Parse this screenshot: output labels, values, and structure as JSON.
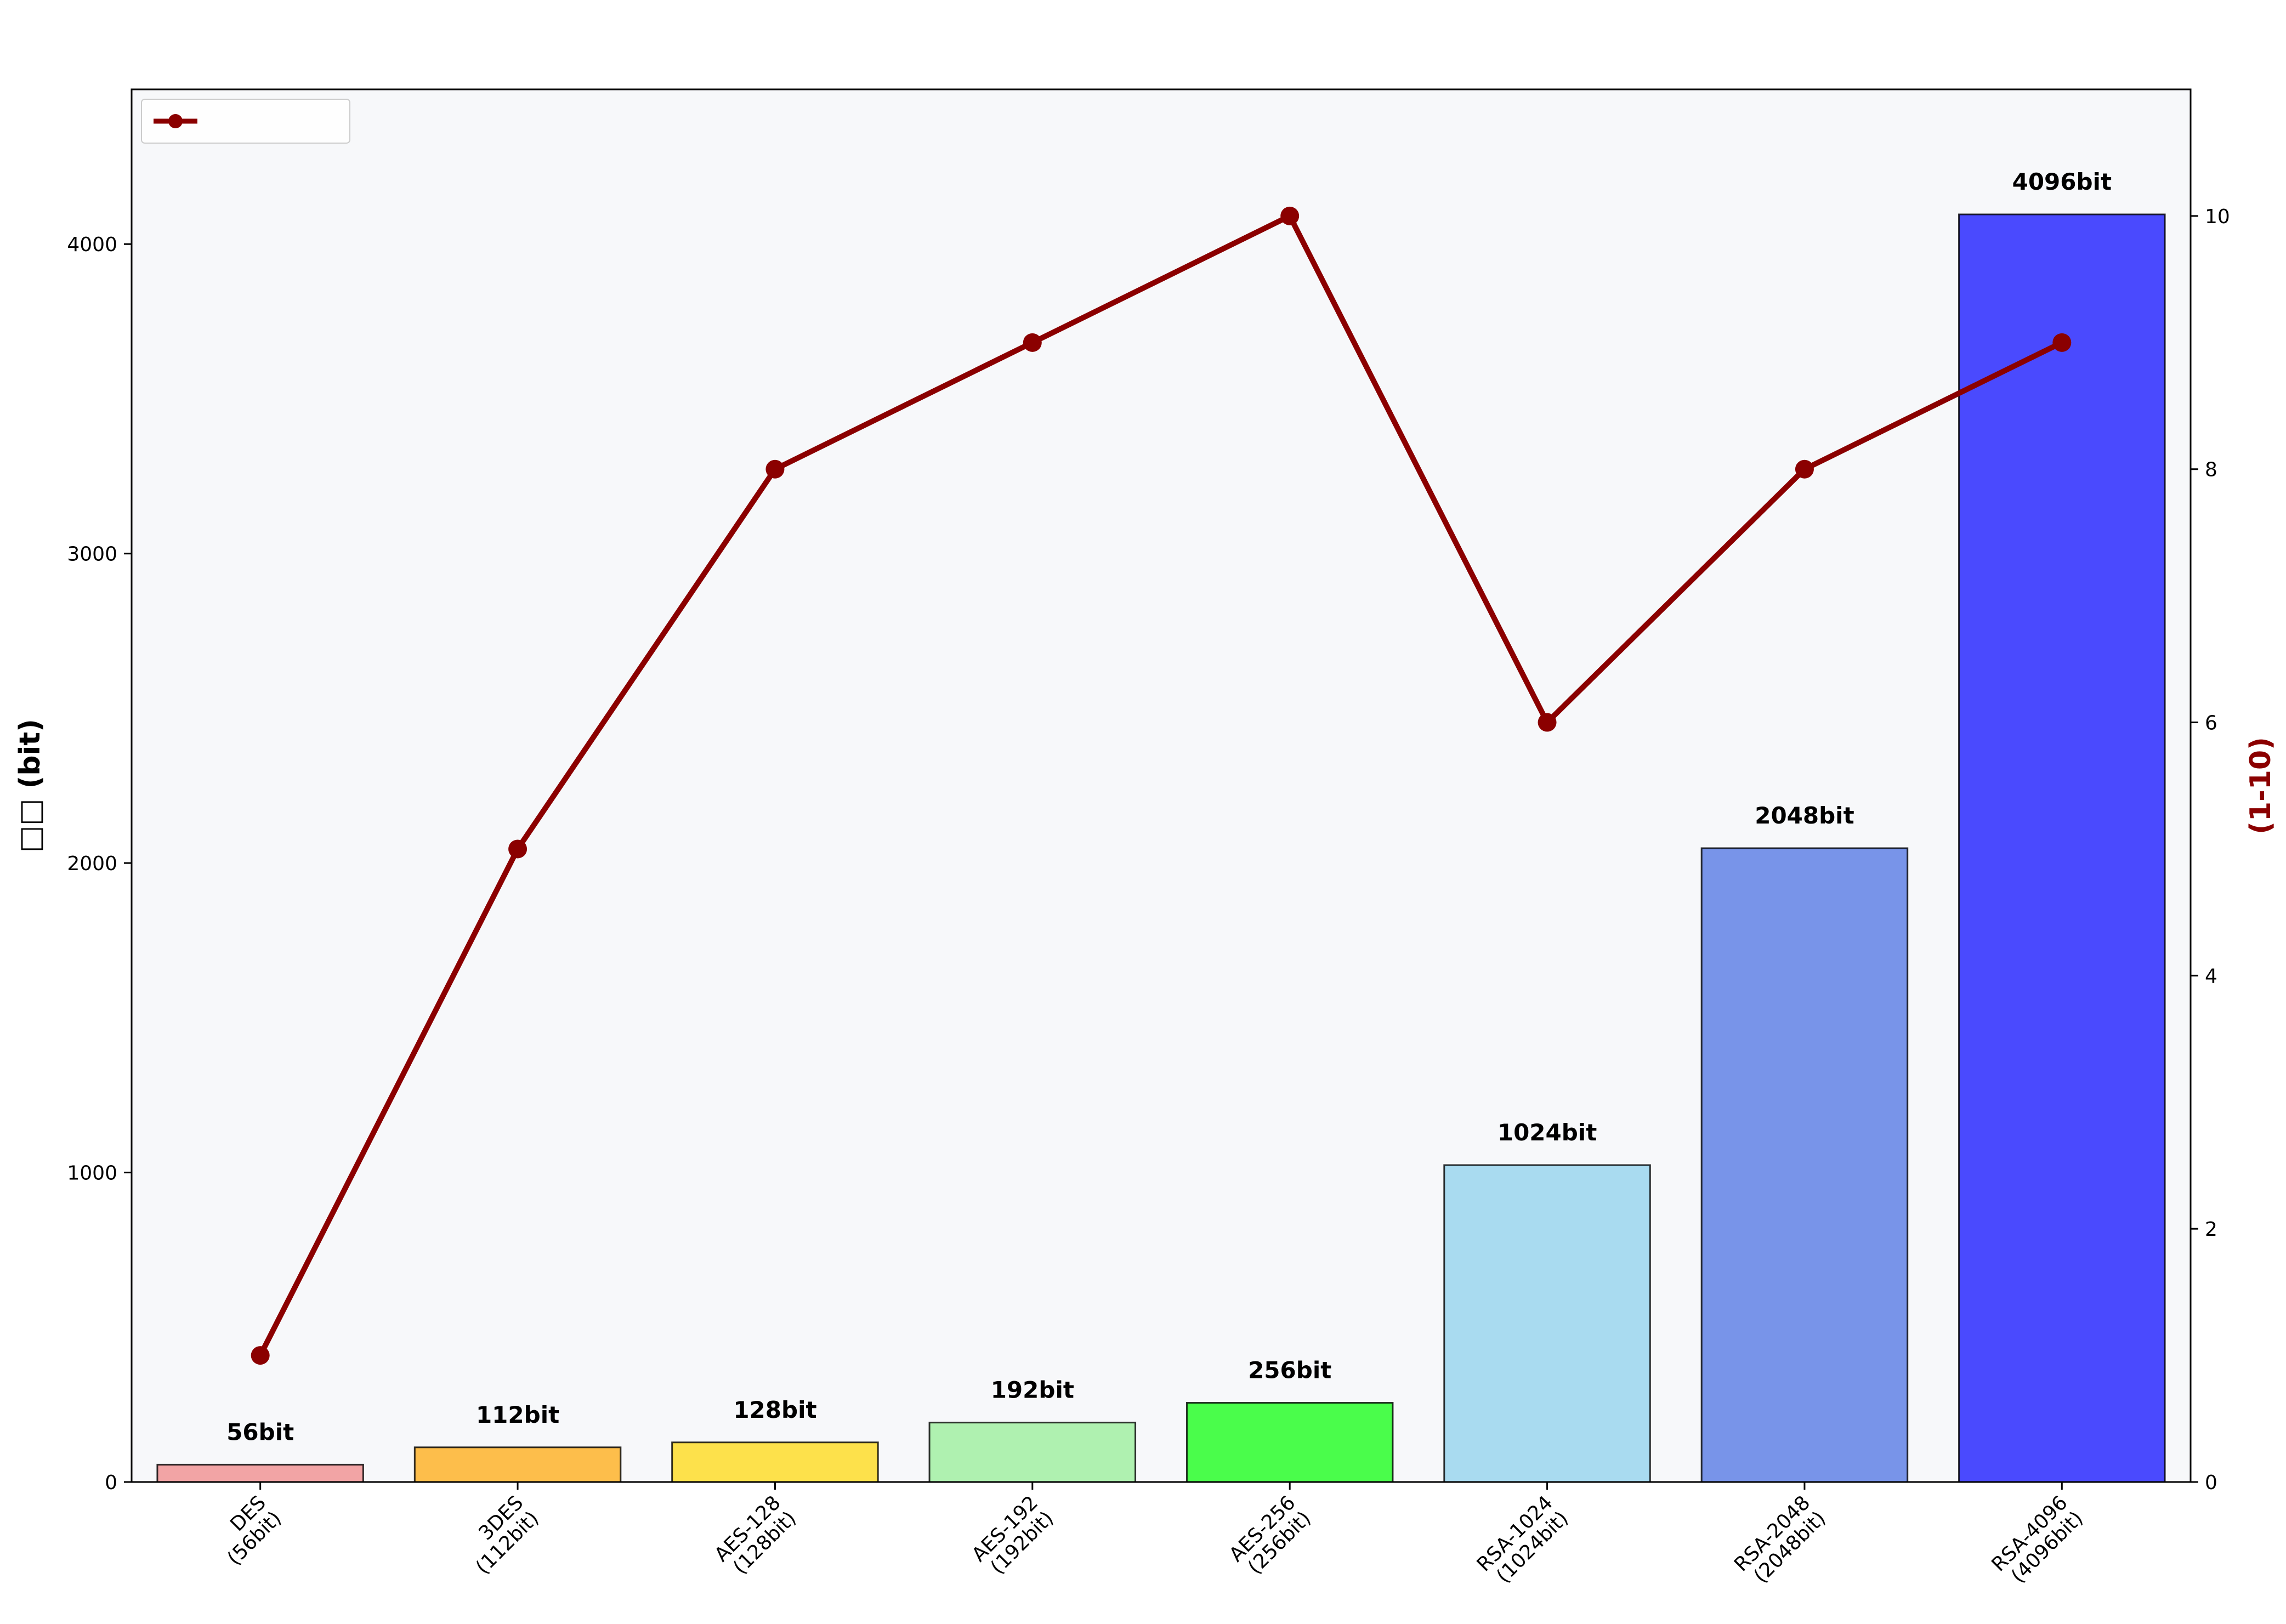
{
  "chart_data": {
    "type": "bar",
    "title": "",
    "categories": [
      "DES\n(56bit)",
      "3DES\n(112bit)",
      "AES-128\n(128bit)",
      "AES-192\n(192bit)",
      "AES-256\n(256bit)",
      "RSA-1024\n(1024bit)",
      "RSA-2048\n(2048bit)",
      "RSA-4096\n(4096bit)"
    ],
    "values": [
      56,
      112,
      128,
      192,
      256,
      1024,
      2048,
      4096
    ],
    "data_labels": [
      "56bit",
      "112bit",
      "128bit",
      "192bit",
      "256bit",
      "1024bit",
      "2048bit",
      "4096bit"
    ],
    "bar_colors": [
      "#F08080",
      "#FFA500",
      "#FFD700",
      "#90EE90",
      "#00FF00",
      "#87CEEB",
      "#4169E1",
      "#0000FF"
    ],
    "ylabel": "□□ (bit)",
    "ylim": [
      0,
      4500
    ],
    "yticks": [
      0,
      1000,
      2000,
      3000,
      4000
    ],
    "secondary": {
      "type": "line",
      "name": "",
      "values": [
        1,
        5,
        8,
        9,
        10,
        6,
        8,
        9
      ],
      "ylabel": " (1-10)",
      "ylim": [
        0,
        11
      ],
      "yticks": [
        0,
        2,
        4,
        6,
        8,
        10
      ],
      "color": "#8B0000"
    },
    "legend_position": "top-left",
    "grid": false,
    "plot_background": "#F7F8FA"
  }
}
